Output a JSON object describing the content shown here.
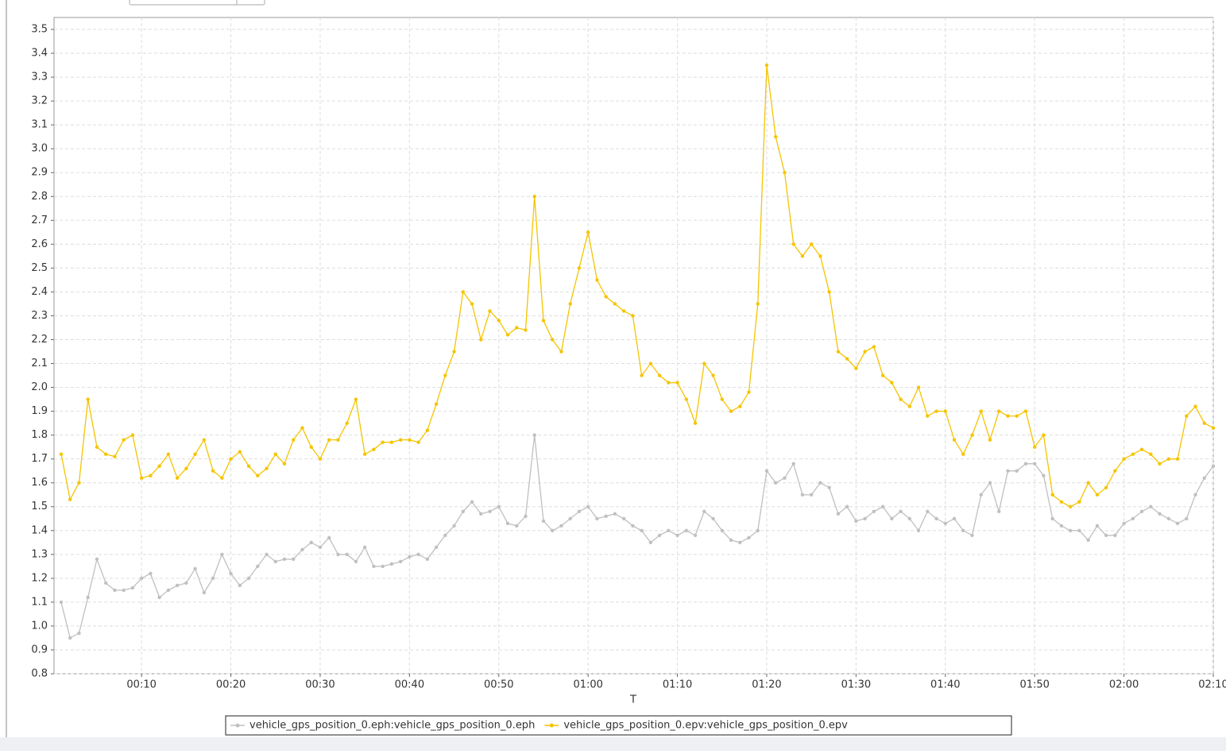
{
  "chart_data": {
    "type": "line",
    "x_label": "T",
    "x": [
      1,
      2,
      3,
      4,
      5,
      6,
      7,
      8,
      9,
      10,
      11,
      12,
      13,
      14,
      15,
      16,
      17,
      18,
      19,
      20,
      21,
      22,
      23,
      24,
      25,
      26,
      27,
      28,
      29,
      30,
      31,
      32,
      33,
      34,
      35,
      36,
      37,
      38,
      39,
      40,
      41,
      42,
      43,
      44,
      45,
      46,
      47,
      48,
      49,
      50,
      51,
      52,
      53,
      54,
      55,
      56,
      57,
      58,
      59,
      60,
      61,
      62,
      63,
      64,
      65,
      66,
      67,
      68,
      69,
      70,
      71,
      72,
      73,
      74,
      75,
      76,
      77,
      78,
      79,
      80,
      81,
      82,
      83,
      84,
      85,
      86,
      87,
      88,
      89,
      90,
      91,
      92,
      93,
      94,
      95,
      96,
      97,
      98,
      99,
      100,
      101,
      102,
      103,
      104,
      105,
      106,
      107,
      108,
      109,
      110,
      111,
      112,
      113,
      114,
      115,
      116,
      117,
      118,
      119,
      120,
      121,
      122,
      123,
      124,
      125,
      126,
      127,
      128,
      129,
      130
    ],
    "series": [
      {
        "name": "vehicle_gps_position_0.eph:vehicle_gps_position_0.eph",
        "color": "#c0c0c0",
        "values": [
          1.1,
          0.95,
          0.97,
          1.12,
          1.28,
          1.18,
          1.15,
          1.15,
          1.16,
          1.2,
          1.22,
          1.12,
          1.15,
          1.17,
          1.18,
          1.24,
          1.14,
          1.2,
          1.3,
          1.22,
          1.17,
          1.2,
          1.25,
          1.3,
          1.27,
          1.28,
          1.28,
          1.32,
          1.35,
          1.33,
          1.37,
          1.3,
          1.3,
          1.27,
          1.33,
          1.25,
          1.25,
          1.26,
          1.27,
          1.29,
          1.3,
          1.28,
          1.33,
          1.38,
          1.42,
          1.48,
          1.52,
          1.47,
          1.48,
          1.5,
          1.43,
          1.42,
          1.46,
          1.8,
          1.44,
          1.4,
          1.42,
          1.45,
          1.48,
          1.5,
          1.45,
          1.46,
          1.47,
          1.45,
          1.42,
          1.4,
          1.35,
          1.38,
          1.4,
          1.38,
          1.4,
          1.38,
          1.48,
          1.45,
          1.4,
          1.36,
          1.35,
          1.37,
          1.4,
          1.65,
          1.6,
          1.62,
          1.68,
          1.55,
          1.55,
          1.6,
          1.58,
          1.47,
          1.5,
          1.44,
          1.45,
          1.48,
          1.5,
          1.45,
          1.48,
          1.45,
          1.4,
          1.48,
          1.45,
          1.43,
          1.45,
          1.4,
          1.38,
          1.55,
          1.6,
          1.48,
          1.65,
          1.65,
          1.68,
          1.68,
          1.63,
          1.45,
          1.42,
          1.4,
          1.4,
          1.36,
          1.42,
          1.38,
          1.38,
          1.43,
          1.45,
          1.48,
          1.5,
          1.47,
          1.45,
          1.43,
          1.45,
          1.55,
          1.62,
          1.67
        ]
      },
      {
        "name": "vehicle_gps_position_0.epv:vehicle_gps_position_0.epv",
        "color": "#f5c400",
        "values": [
          1.72,
          1.53,
          1.6,
          1.95,
          1.75,
          1.72,
          1.71,
          1.78,
          1.8,
          1.62,
          1.63,
          1.67,
          1.72,
          1.62,
          1.66,
          1.72,
          1.78,
          1.65,
          1.62,
          1.7,
          1.73,
          1.67,
          1.63,
          1.66,
          1.72,
          1.68,
          1.78,
          1.83,
          1.75,
          1.7,
          1.78,
          1.78,
          1.85,
          1.95,
          1.72,
          1.74,
          1.77,
          1.77,
          1.78,
          1.78,
          1.77,
          1.82,
          1.93,
          2.05,
          2.15,
          2.4,
          2.35,
          2.2,
          2.32,
          2.28,
          2.22,
          2.25,
          2.24,
          2.8,
          2.28,
          2.2,
          2.15,
          2.35,
          2.5,
          2.65,
          2.45,
          2.38,
          2.35,
          2.32,
          2.3,
          2.05,
          2.1,
          2.05,
          2.02,
          2.02,
          1.95,
          1.85,
          2.1,
          2.05,
          1.95,
          1.9,
          1.92,
          1.98,
          2.35,
          3.35,
          3.05,
          2.9,
          2.6,
          2.55,
          2.6,
          2.55,
          2.4,
          2.15,
          2.12,
          2.08,
          2.15,
          2.17,
          2.05,
          2.02,
          1.95,
          1.92,
          2.0,
          1.88,
          1.9,
          1.9,
          1.78,
          1.72,
          1.8,
          1.9,
          1.78,
          1.9,
          1.88,
          1.88,
          1.9,
          1.75,
          1.8,
          1.55,
          1.52,
          1.5,
          1.52,
          1.6,
          1.55,
          1.58,
          1.65,
          1.7,
          1.72,
          1.74,
          1.72,
          1.68,
          1.7,
          1.7,
          1.88,
          1.92,
          1.85,
          1.83
        ]
      }
    ],
    "xlim": [
      0.2,
      130
    ],
    "xticks": [
      {
        "value": 10,
        "label": "00:10"
      },
      {
        "value": 20,
        "label": "00:20"
      },
      {
        "value": 30,
        "label": "00:30"
      },
      {
        "value": 40,
        "label": "00:40"
      },
      {
        "value": 50,
        "label": "00:50"
      },
      {
        "value": 60,
        "label": "01:00"
      },
      {
        "value": 70,
        "label": "01:10"
      },
      {
        "value": 80,
        "label": "01:20"
      },
      {
        "value": 90,
        "label": "01:30"
      },
      {
        "value": 100,
        "label": "01:40"
      },
      {
        "value": 110,
        "label": "01:50"
      },
      {
        "value": 120,
        "label": "02:00"
      },
      {
        "value": 130,
        "label": "02:10"
      }
    ],
    "ylim": [
      0.8,
      3.55
    ],
    "yticks": [
      0.8,
      0.9,
      {
        "value": 1,
        "label": "1.0"
      },
      1.1,
      1.2,
      1.3,
      1.4,
      1.5,
      1.6,
      1.7,
      1.8,
      1.9,
      {
        "value": 2,
        "label": "2.0"
      },
      2.1,
      2.2,
      2.3,
      2.4,
      2.5,
      2.6,
      2.7,
      2.8,
      2.9,
      {
        "value": 3,
        "label": "3.0"
      },
      3.1,
      3.2,
      3.3,
      3.4,
      3.5
    ],
    "grid": true
  }
}
